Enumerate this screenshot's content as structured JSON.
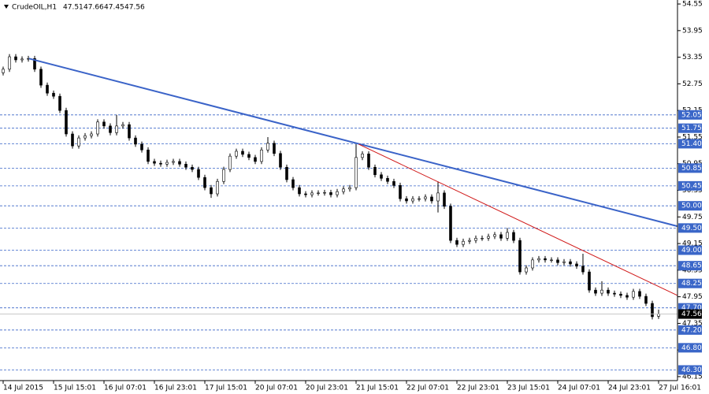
{
  "chart_data": {
    "type": "candlestick",
    "title": "CrudeOIL,H1",
    "ohlc": [
      [
        53.0,
        53.14,
        52.94,
        53.08
      ],
      [
        53.08,
        53.42,
        53.02,
        53.36
      ],
      [
        53.36,
        53.42,
        53.23,
        53.29
      ],
      [
        53.29,
        53.37,
        53.23,
        53.31
      ],
      [
        53.31,
        53.38,
        53.25,
        53.32
      ],
      [
        53.32,
        53.38,
        53.02,
        53.08
      ],
      [
        53.08,
        53.14,
        52.66,
        52.72
      ],
      [
        52.72,
        52.78,
        52.48,
        52.54
      ],
      [
        52.54,
        52.6,
        52.41,
        52.47
      ],
      [
        52.47,
        52.53,
        52.09,
        52.15
      ],
      [
        52.15,
        52.21,
        51.56,
        51.62
      ],
      [
        51.62,
        51.68,
        51.29,
        51.35
      ],
      [
        51.35,
        51.59,
        51.29,
        51.53
      ],
      [
        51.53,
        51.64,
        51.47,
        51.58
      ],
      [
        51.58,
        51.68,
        51.52,
        51.62
      ],
      [
        51.62,
        51.95,
        51.56,
        51.89
      ],
      [
        51.89,
        51.95,
        51.74,
        51.8
      ],
      [
        51.8,
        51.86,
        51.59,
        51.65
      ],
      [
        51.65,
        52.05,
        51.59,
        51.8
      ],
      [
        51.8,
        51.89,
        51.74,
        51.83
      ],
      [
        51.83,
        51.89,
        51.47,
        51.53
      ],
      [
        51.53,
        51.59,
        51.33,
        51.39
      ],
      [
        51.39,
        51.45,
        51.2,
        51.26
      ],
      [
        51.26,
        51.32,
        50.94,
        51.0
      ],
      [
        51.0,
        51.06,
        50.9,
        50.96
      ],
      [
        50.96,
        51.02,
        50.88,
        50.94
      ],
      [
        50.94,
        51.04,
        50.88,
        50.98
      ],
      [
        50.98,
        51.06,
        50.92,
        51.0
      ],
      [
        51.0,
        51.06,
        50.88,
        50.94
      ],
      [
        50.94,
        51.0,
        50.81,
        50.87
      ],
      [
        50.87,
        50.93,
        50.76,
        50.82
      ],
      [
        50.82,
        50.88,
        50.58,
        50.64
      ],
      [
        50.64,
        50.7,
        50.35,
        50.41
      ],
      [
        50.41,
        50.47,
        50.18,
        50.27
      ],
      [
        50.27,
        50.61,
        50.21,
        50.55
      ],
      [
        50.55,
        50.88,
        50.49,
        50.82
      ],
      [
        50.82,
        51.18,
        50.76,
        51.12
      ],
      [
        51.12,
        51.29,
        51.06,
        51.23
      ],
      [
        51.23,
        51.29,
        51.1,
        51.16
      ],
      [
        51.16,
        51.22,
        51.03,
        51.09
      ],
      [
        51.09,
        51.15,
        50.94,
        51.0
      ],
      [
        51.0,
        51.32,
        50.94,
        51.26
      ],
      [
        51.26,
        51.55,
        51.2,
        51.41
      ],
      [
        51.41,
        51.47,
        51.12,
        51.18
      ],
      [
        51.18,
        51.24,
        50.81,
        50.87
      ],
      [
        50.87,
        50.93,
        50.53,
        50.59
      ],
      [
        50.59,
        50.65,
        50.35,
        50.41
      ],
      [
        50.41,
        50.47,
        50.21,
        50.27
      ],
      [
        50.27,
        50.33,
        50.19,
        50.25
      ],
      [
        50.25,
        50.35,
        50.19,
        50.29
      ],
      [
        50.29,
        50.35,
        50.23,
        50.29
      ],
      [
        50.29,
        50.36,
        50.23,
        50.3
      ],
      [
        50.3,
        50.36,
        50.19,
        50.25
      ],
      [
        50.25,
        50.38,
        50.19,
        50.32
      ],
      [
        50.32,
        50.44,
        50.26,
        50.38
      ],
      [
        50.38,
        50.47,
        50.32,
        50.41
      ],
      [
        50.41,
        51.39,
        50.35,
        51.09
      ],
      [
        51.09,
        51.23,
        51.03,
        51.17
      ],
      [
        51.17,
        51.23,
        50.81,
        50.87
      ],
      [
        50.87,
        50.93,
        50.64,
        50.7
      ],
      [
        50.7,
        50.76,
        50.56,
        50.62
      ],
      [
        50.62,
        50.68,
        50.49,
        50.55
      ],
      [
        50.55,
        50.61,
        50.4,
        50.46
      ],
      [
        50.46,
        50.52,
        50.1,
        50.16
      ],
      [
        50.16,
        50.22,
        50.05,
        50.11
      ],
      [
        50.11,
        50.22,
        50.05,
        50.16
      ],
      [
        50.16,
        50.22,
        50.1,
        50.16
      ],
      [
        50.16,
        50.26,
        50.1,
        50.2
      ],
      [
        50.2,
        50.26,
        50.05,
        50.11
      ],
      [
        50.11,
        50.55,
        49.85,
        50.29
      ],
      [
        50.29,
        50.35,
        49.93,
        49.99
      ],
      [
        49.99,
        50.05,
        49.16,
        49.22
      ],
      [
        49.22,
        49.28,
        49.07,
        49.13
      ],
      [
        49.13,
        49.26,
        49.07,
        49.2
      ],
      [
        49.2,
        49.28,
        49.14,
        49.22
      ],
      [
        49.22,
        49.33,
        49.16,
        49.27
      ],
      [
        49.27,
        49.33,
        49.21,
        49.27
      ],
      [
        49.27,
        49.37,
        49.21,
        49.31
      ],
      [
        49.31,
        49.41,
        49.25,
        49.35
      ],
      [
        49.35,
        49.41,
        49.21,
        49.27
      ],
      [
        49.27,
        49.5,
        49.21,
        49.4
      ],
      [
        49.4,
        49.46,
        49.16,
        49.22
      ],
      [
        49.22,
        49.28,
        48.45,
        48.51
      ],
      [
        48.51,
        48.66,
        48.45,
        48.6
      ],
      [
        48.6,
        48.84,
        48.54,
        48.78
      ],
      [
        48.78,
        48.87,
        48.72,
        48.81
      ],
      [
        48.81,
        48.87,
        48.72,
        48.78
      ],
      [
        48.78,
        48.84,
        48.72,
        48.78
      ],
      [
        48.78,
        48.84,
        48.66,
        48.72
      ],
      [
        48.72,
        48.8,
        48.66,
        48.74
      ],
      [
        48.74,
        48.8,
        48.63,
        48.69
      ],
      [
        48.69,
        48.75,
        48.58,
        48.64
      ],
      [
        48.64,
        48.92,
        48.45,
        48.51
      ],
      [
        48.51,
        48.57,
        48.04,
        48.1
      ],
      [
        48.1,
        48.16,
        47.97,
        48.03
      ],
      [
        48.03,
        48.3,
        47.97,
        48.1
      ],
      [
        48.1,
        48.16,
        47.97,
        48.03
      ],
      [
        48.03,
        48.09,
        47.95,
        48.01
      ],
      [
        48.01,
        48.07,
        47.92,
        47.98
      ],
      [
        47.98,
        48.04,
        47.88,
        47.94
      ],
      [
        47.94,
        48.13,
        47.88,
        48.07
      ],
      [
        48.07,
        48.13,
        47.9,
        47.96
      ],
      [
        47.96,
        48.02,
        47.74,
        47.8
      ],
      [
        47.8,
        47.86,
        47.44,
        47.5
      ],
      [
        47.51,
        47.66,
        47.45,
        47.56
      ]
    ],
    "xlim": [
      -0.5,
      107
    ],
    "xticks": [
      {
        "value": 0,
        "label": "14 Jul 2015"
      },
      {
        "value": 8,
        "label": "15 Jul 15:01"
      },
      {
        "value": 16,
        "label": "16 Jul 07:01"
      },
      {
        "value": 24,
        "label": "16 Jul 23:01"
      },
      {
        "value": 32,
        "label": "17 Jul 15:01"
      },
      {
        "value": 40,
        "label": "20 Jul 07:01"
      },
      {
        "value": 48,
        "label": "20 Jul 23:01"
      },
      {
        "value": 56,
        "label": "21 Jul 15:01"
      },
      {
        "value": 64,
        "label": "22 Jul 07:01"
      },
      {
        "value": 72,
        "label": "22 Jul 23:01"
      },
      {
        "value": 80,
        "label": "23 Jul 15:01"
      },
      {
        "value": 88,
        "label": "24 Jul 07:01"
      },
      {
        "value": 96,
        "label": "24 Jul 23:01"
      },
      {
        "value": 104,
        "label": "27 Jul 16:01"
      }
    ],
    "ylim": [
      46.06,
      54.64
    ],
    "yticks": [
      54.55,
      53.95,
      53.35,
      52.75,
      52.15,
      51.55,
      50.95,
      50.35,
      49.75,
      49.15,
      48.55,
      47.95,
      47.35,
      46.75,
      46.15
    ],
    "levels": [
      52.05,
      51.75,
      {
        "value": 51.4,
        "label": "51.40"
      },
      50.85,
      50.45,
      {
        "value": 50,
        "label": "50.00"
      },
      {
        "value": 49.5,
        "label": "49.50"
      },
      {
        "value": 49,
        "label": "49.00"
      },
      48.65,
      48.25,
      {
        "value": 47.7,
        "label": "47.70"
      },
      {
        "value": 47.2,
        "label": "47.20"
      },
      {
        "value": 46.8,
        "label": "46.80"
      },
      {
        "value": 46.3,
        "label": "46.30"
      }
    ],
    "level_color": "#3a66c8",
    "bull_color": "#ffffff",
    "bear_color": "#000000",
    "trendlines": [
      {
        "color": "#3a63c8",
        "points": [
          [
            4.1,
            53.32
          ],
          [
            107,
            49.54
          ]
        ]
      },
      {
        "color": "#d01818",
        "points": [
          [
            56.4,
            51.39
          ],
          [
            107,
            47.98
          ]
        ]
      }
    ]
  }
}
